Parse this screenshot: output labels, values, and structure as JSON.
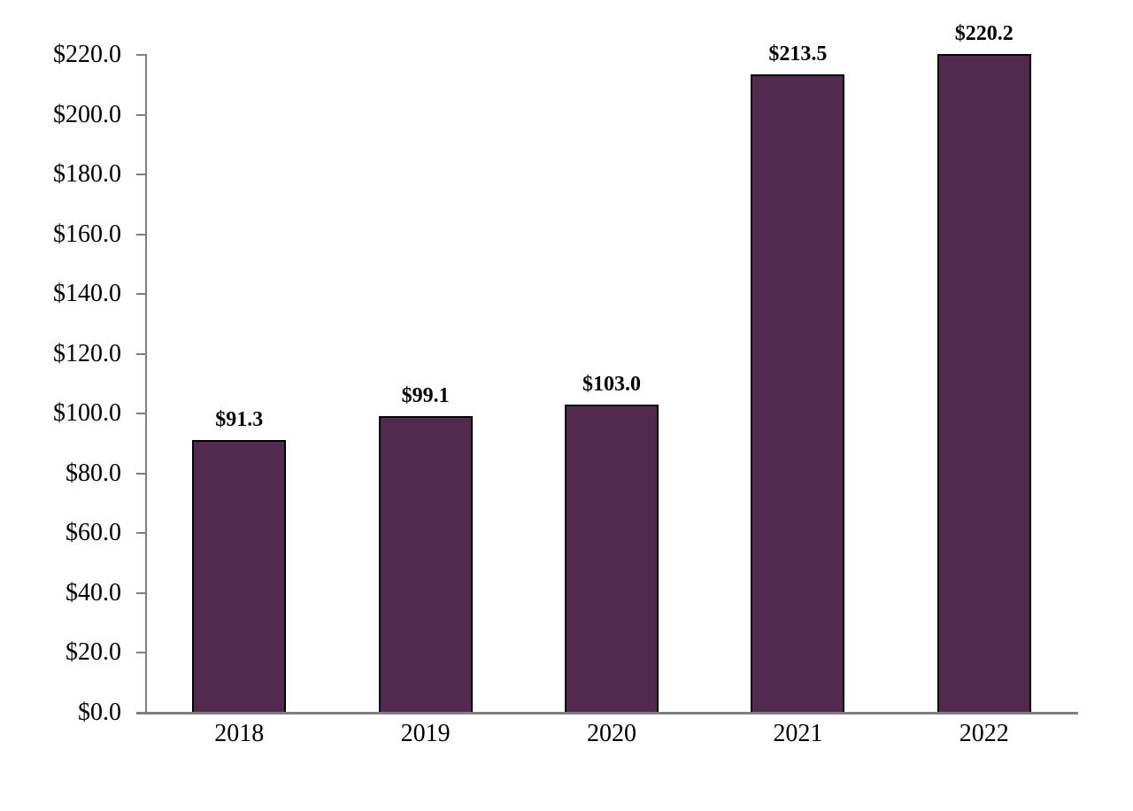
{
  "chart_data": {
    "type": "bar",
    "title": "",
    "xlabel": "",
    "ylabel": "",
    "categories": [
      "2018",
      "2019",
      "2020",
      "2021",
      "2022"
    ],
    "series": [
      {
        "name": "value",
        "values": [
          91.3,
          99.1,
          103.0,
          213.5,
          220.2
        ],
        "data_labels": [
          "$91.3",
          "$99.1",
          "$103.0",
          "$213.5",
          "$220.2"
        ]
      }
    ],
    "y_ticks": [
      {
        "label": "$0.0",
        "value": 0
      },
      {
        "label": "$20.0",
        "value": 20
      },
      {
        "label": "$40.0",
        "value": 40
      },
      {
        "label": "$60.0",
        "value": 60
      },
      {
        "label": "$80.0",
        "value": 80
      },
      {
        "label": "$100.0",
        "value": 100
      },
      {
        "label": "$120.0",
        "value": 120
      },
      {
        "label": "$140.0",
        "value": 140
      },
      {
        "label": "$160.0",
        "value": 160
      },
      {
        "label": "$180.0",
        "value": 180
      },
      {
        "label": "$200.0",
        "value": 200
      },
      {
        "label": "$220.0",
        "value": 220
      }
    ],
    "ylim": [
      0,
      220
    ],
    "grid": false,
    "legend_position": "none",
    "colors": {
      "bar_fill": "#52294F",
      "bar_border": "#000000",
      "axis": "#7F7F7F",
      "label_text": "#000000",
      "background": "#FFFFFF"
    }
  }
}
